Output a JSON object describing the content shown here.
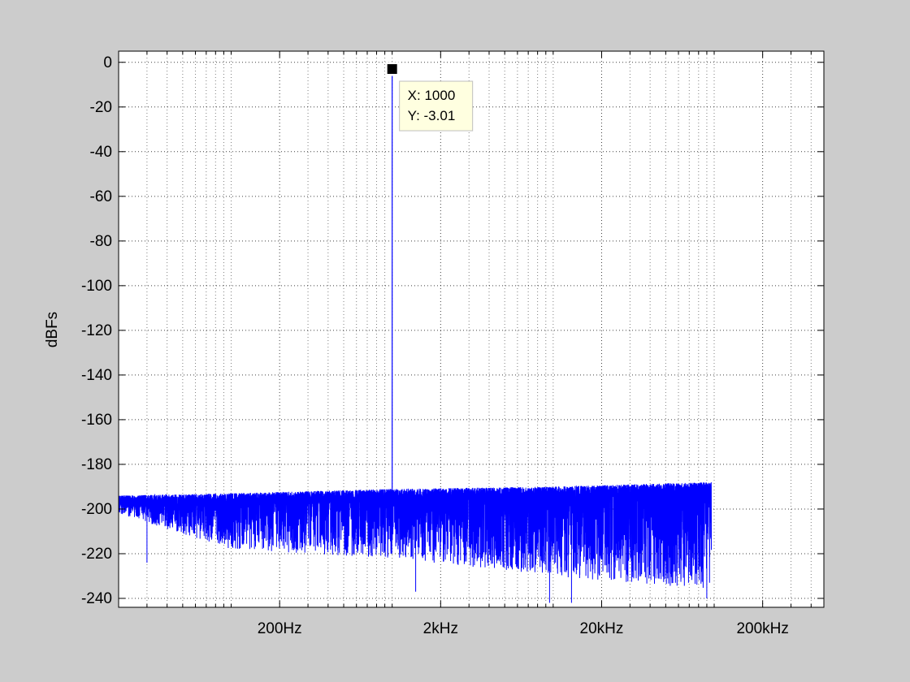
{
  "colors": {
    "figure_background": "#cccccc",
    "axes_background": "#ffffff",
    "series": "#0000ff",
    "grid": "#000000",
    "datatip_background": "#ffffe0",
    "marker": "#000000"
  },
  "chart_data": {
    "type": "line",
    "title": "",
    "xlabel": "",
    "ylabel": "dBFs",
    "x_scale": "log",
    "xlim": [
      20,
      480000
    ],
    "ylim": [
      -244,
      5
    ],
    "grid": true,
    "legend": "none",
    "x_ticks": [
      {
        "value": 200,
        "label": "200Hz"
      },
      {
        "value": 2000,
        "label": "2kHz"
      },
      {
        "value": 20000,
        "label": "20kHz"
      },
      {
        "value": 200000,
        "label": "200kHz"
      }
    ],
    "y_ticks": [
      {
        "value": 0,
        "label": "0"
      },
      {
        "value": -20,
        "label": "-20"
      },
      {
        "value": -40,
        "label": "-40"
      },
      {
        "value": -60,
        "label": "-60"
      },
      {
        "value": -80,
        "label": "-80"
      },
      {
        "value": -100,
        "label": "-100"
      },
      {
        "value": -120,
        "label": "-120"
      },
      {
        "value": -140,
        "label": "-140"
      },
      {
        "value": -160,
        "label": "-160"
      },
      {
        "value": -180,
        "label": "-180"
      },
      {
        "value": -200,
        "label": "-200"
      },
      {
        "value": -220,
        "label": "-220"
      },
      {
        "value": -240,
        "label": "-240"
      }
    ],
    "series": [
      {
        "peak": {
          "x": 1000,
          "y": -3.01
        },
        "noise_floor": {
          "x_range": [
            20,
            96000
          ],
          "envelope": [
            {
              "x": 20,
              "top": -194,
              "bottom": -202
            },
            {
              "x": 100,
              "top": -193,
              "bottom": -218
            },
            {
              "x": 1000,
              "top": -191,
              "bottom": -222
            },
            {
              "x": 10000,
              "top": -190,
              "bottom": -230
            },
            {
              "x": 96000,
              "top": -188,
              "bottom": -236
            }
          ],
          "deepest_dips": [
            {
              "x": 30,
              "y": -224
            },
            {
              "x": 1400,
              "y": -237
            },
            {
              "x": 9500,
              "y": -242
            },
            {
              "x": 13000,
              "y": -242
            },
            {
              "x": 90000,
              "y": -240
            }
          ]
        }
      }
    ],
    "datatip": {
      "x": 1000,
      "y": -3.01,
      "x_text": "X: 1000",
      "y_text": "Y: -3.01"
    }
  }
}
